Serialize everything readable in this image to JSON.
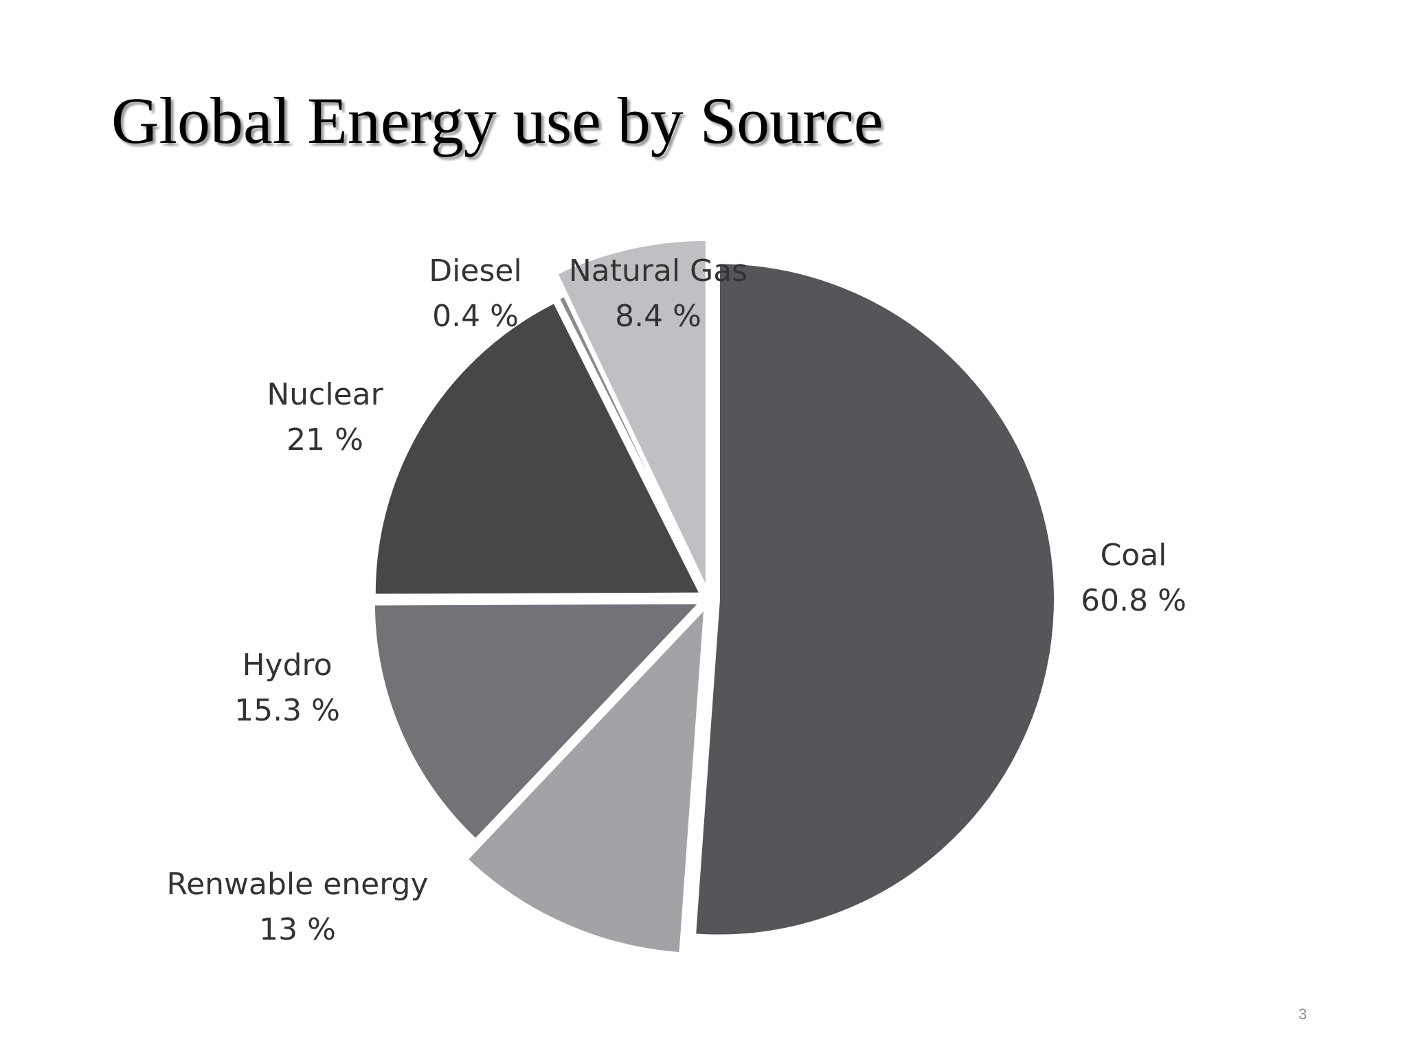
{
  "slide": {
    "title": "Global Energy use by Source",
    "page_number": "3"
  },
  "chart_data": {
    "type": "pie",
    "title": "",
    "slices": [
      {
        "name": "Coal",
        "label": "60.8 %",
        "value": 60.8,
        "color": "#56555a"
      },
      {
        "name": "Renwable energy",
        "label": "13 %",
        "value": 13,
        "color": "#a3a2a6"
      },
      {
        "name": "Hydro",
        "label": "15.3 %",
        "value": 15.3,
        "color": "#737276"
      },
      {
        "name": "Nuclear",
        "label": "21 %",
        "value": 21,
        "color": "#474649"
      },
      {
        "name": "Diesel",
        "label": "0.4 %",
        "value": 0.4,
        "color": "#8a898d"
      },
      {
        "name": "Natural Gas",
        "label": "8.4 %",
        "value": 8.4,
        "color": "#c0bfc3"
      }
    ],
    "legend": "none"
  }
}
